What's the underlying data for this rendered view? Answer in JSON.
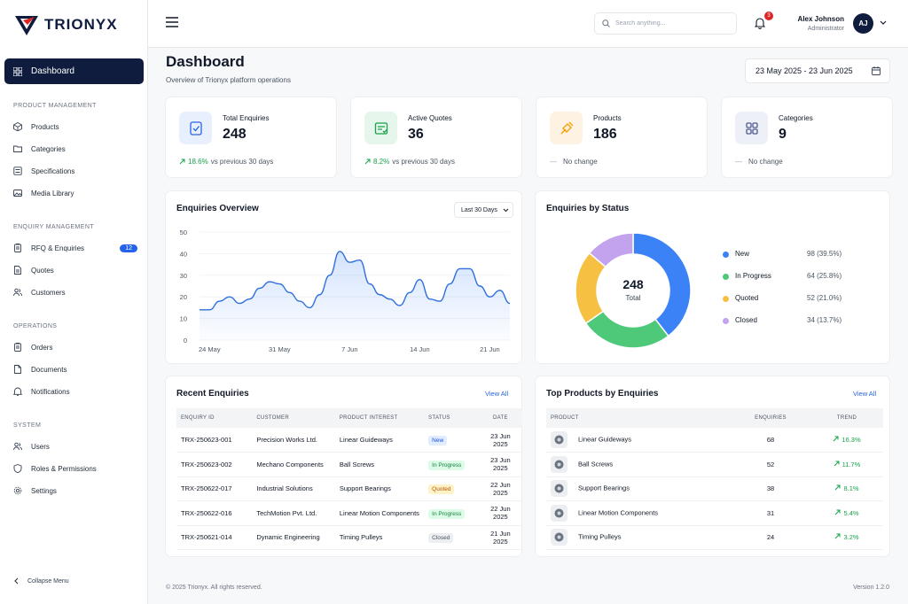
{
  "brand": {
    "name": "TRIONYX"
  },
  "sidebar": {
    "dashboard": "Dashboard",
    "sections": [
      {
        "title": "PRODUCT MANAGEMENT",
        "items": [
          {
            "label": "Products",
            "icon": "box-icon"
          },
          {
            "label": "Categories",
            "icon": "folder-icon"
          },
          {
            "label": "Specifications",
            "icon": "list-icon"
          },
          {
            "label": "Media Library",
            "icon": "image-icon"
          }
        ]
      },
      {
        "title": "ENQUIRY MANAGEMENT",
        "items": [
          {
            "label": "RFQ & Enquiries",
            "icon": "clipboard-icon",
            "badge": "12"
          },
          {
            "label": "Quotes",
            "icon": "file-icon"
          },
          {
            "label": "Customers",
            "icon": "users-icon"
          }
        ]
      },
      {
        "title": "OPERATIONS",
        "items": [
          {
            "label": "Orders",
            "icon": "clipboard-icon"
          },
          {
            "label": "Documents",
            "icon": "document-icon"
          },
          {
            "label": "Notifications",
            "icon": "bell-icon"
          }
        ]
      },
      {
        "title": "SYSTEM",
        "items": [
          {
            "label": "Users",
            "icon": "users-icon"
          },
          {
            "label": "Roles & Permissions",
            "icon": "shield-icon"
          },
          {
            "label": "Settings",
            "icon": "gear-icon"
          }
        ]
      }
    ],
    "collapse": "Collapse Menu"
  },
  "header": {
    "search_placeholder": "Search anything...",
    "notifications_count": "3",
    "user_name": "Alex Johnson",
    "user_role": "Administrator",
    "user_initials": "AJ"
  },
  "page": {
    "title": "Dashboard",
    "subtitle": "Overview of Trionyx platform operations",
    "date_range": "23 May 2025 - 23 Jun 2025"
  },
  "stats": [
    {
      "label": "Total Enquiries",
      "value": "248",
      "change": "18.6%",
      "change_text": "vs previous 30 days",
      "trend": "up",
      "color": "#2563eb",
      "bg": "#e8f0fe"
    },
    {
      "label": "Active Quotes",
      "value": "36",
      "change": "8.2%",
      "change_text": "vs previous 30 days",
      "trend": "up",
      "color": "#16a34a",
      "bg": "#e6f6ec"
    },
    {
      "label": "Products",
      "value": "186",
      "change": "—",
      "change_text": "No change",
      "trend": "flat",
      "color": "#f59e0b",
      "bg": "#fef3e2"
    },
    {
      "label": "Categories",
      "value": "9",
      "change": "—",
      "change_text": "No change",
      "trend": "flat",
      "color": "#4f5b93",
      "bg": "#eef0f7"
    }
  ],
  "enquiries_overview": {
    "title": "Enquiries Overview",
    "period": "Last 30 Days",
    "chart_data": {
      "type": "area",
      "ylim": [
        0,
        50
      ],
      "yticks": [
        0,
        10,
        20,
        30,
        40,
        50
      ],
      "xticks": [
        {
          "label": "24 May",
          "x": 1
        },
        {
          "label": "31 May",
          "x": 8
        },
        {
          "label": "7 Jun",
          "x": 15
        },
        {
          "label": "14 Jun",
          "x": 22
        },
        {
          "label": "21 Jun",
          "x": 29
        }
      ],
      "x": [
        0,
        1,
        2,
        3,
        4,
        5,
        6,
        7,
        8,
        9,
        10,
        11,
        12,
        13,
        14,
        15,
        16,
        17,
        18,
        19,
        20,
        21,
        22,
        23,
        24,
        25,
        26,
        27,
        28,
        29,
        30,
        31
      ],
      "y": [
        14,
        14,
        18,
        20,
        17,
        19,
        24,
        27,
        26,
        22,
        18,
        15,
        21,
        30,
        41,
        36,
        37,
        26,
        21,
        19,
        16,
        22,
        28,
        19,
        18,
        26,
        33,
        33,
        25,
        20,
        23,
        17
      ]
    }
  },
  "status_chart": {
    "title": "Enquiries by Status",
    "total": "248",
    "total_label": "Total",
    "chart_data": {
      "type": "pie",
      "slices": [
        {
          "name": "New",
          "value": 98,
          "label": "98 (39.5%)",
          "color": "#3b82f6"
        },
        {
          "name": "In Progress",
          "value": 64,
          "label": "64 (25.8%)",
          "color": "#4ec97a"
        },
        {
          "name": "Quoted",
          "value": 52,
          "label": "52 (21.0%)",
          "color": "#f6c143"
        },
        {
          "name": "Closed",
          "value": 34,
          "label": "34 (13.7%)",
          "color": "#c3a2ee"
        }
      ]
    }
  },
  "recent": {
    "title": "Recent Enquiries",
    "view_all": "View All",
    "columns": [
      "ENQUIRY ID",
      "CUSTOMER",
      "PRODUCT INTEREST",
      "STATUS",
      "DATE"
    ],
    "rows": [
      {
        "id": "TRX-250623-001",
        "customer": "Precision Works Ltd.",
        "product": "Linear Guideways",
        "status": "New",
        "cls": "b-new",
        "date": "23 Jun 2025"
      },
      {
        "id": "TRX-250623-002",
        "customer": "Mechano Components",
        "product": "Ball Screws",
        "status": "In Progress",
        "cls": "b-prog",
        "date": "23 Jun 2025"
      },
      {
        "id": "TRX-250622-017",
        "customer": "Industrial Solutions",
        "product": "Support Bearings",
        "status": "Quoted",
        "cls": "b-quo",
        "date": "22 Jun 2025"
      },
      {
        "id": "TRX-250622-016",
        "customer": "TechMotion Pvt. Ltd.",
        "product": "Linear Motion Components",
        "status": "In Progress",
        "cls": "b-prog",
        "date": "22 Jun 2025"
      },
      {
        "id": "TRX-250621-014",
        "customer": "Dynamic Engineering",
        "product": "Timing Pulleys",
        "status": "Closed",
        "cls": "b-clo",
        "date": "21 Jun 2025"
      }
    ]
  },
  "top_products": {
    "title": "Top Products by Enquiries",
    "view_all": "View All",
    "columns": [
      "PRODUCT",
      "ENQUIRIES",
      "TREND"
    ],
    "rows": [
      {
        "name": "Linear Guideways",
        "enquiries": "68",
        "trend": "16.3%"
      },
      {
        "name": "Ball Screws",
        "enquiries": "52",
        "trend": "11.7%"
      },
      {
        "name": "Support Bearings",
        "enquiries": "38",
        "trend": "8.1%"
      },
      {
        "name": "Linear Motion Components",
        "enquiries": "31",
        "trend": "5.4%"
      },
      {
        "name": "Timing Pulleys",
        "enquiries": "24",
        "trend": "3.2%"
      }
    ]
  },
  "footer": {
    "copyright": "© 2025 Trionyx. All rights reserved.",
    "version": "Version 1.2.0"
  }
}
